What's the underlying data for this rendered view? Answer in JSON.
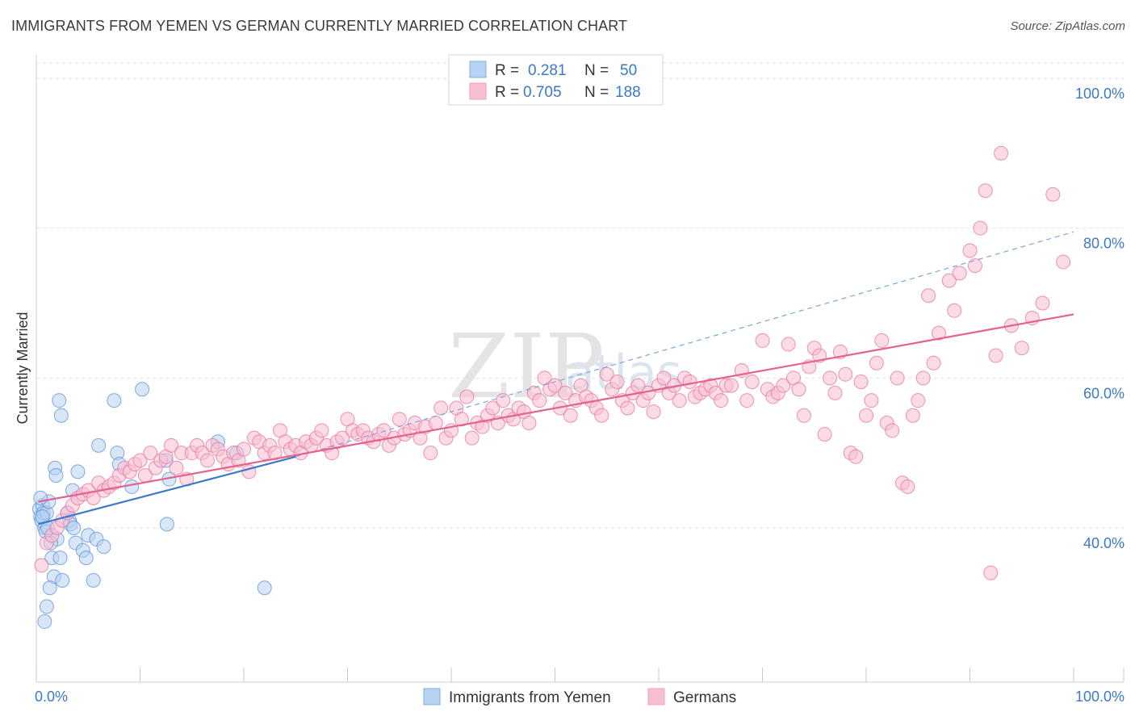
{
  "title": "IMMIGRANTS FROM YEMEN VS GERMAN CURRENTLY MARRIED CORRELATION CHART",
  "source": "Source: ZipAtlas.com",
  "watermark": "ZIP",
  "watermark2": "atlas",
  "legend_top": {
    "r_label": "R =",
    "n_label": "N =",
    "rows": [
      {
        "r": "0.281",
        "n": "50",
        "color": "#7eaee6"
      },
      {
        "r": "0.705",
        "n": "188",
        "color": "#f0a0bc"
      }
    ]
  },
  "chart_data": {
    "type": "scatter",
    "ylabel": "Currently Married",
    "xlabel": "",
    "xlim": [
      0,
      100
    ],
    "ylim": [
      20,
      105
    ],
    "x_tick_labels": [
      "0.0%",
      "100.0%"
    ],
    "y_tick_labels": [
      "40.0%",
      "60.0%",
      "80.0%",
      "100.0%"
    ],
    "y_ticks": [
      40,
      60,
      80,
      100
    ],
    "grid": true,
    "legend_position": "bottom",
    "series": [
      {
        "name": "Immigrants from Yemen",
        "color": "#5b8fd6",
        "fill": "#b8d2f2",
        "trend": {
          "x0": 0.2,
          "y0": 40.5,
          "x1": 25,
          "y1": 49.5,
          "dashed_to_x": 100,
          "dashed_to_y": 79.5
        },
        "points": [
          [
            0.3,
            42.5
          ],
          [
            0.4,
            41.5
          ],
          [
            0.5,
            41
          ],
          [
            0.6,
            43
          ],
          [
            0.7,
            42
          ],
          [
            0.8,
            40
          ],
          [
            0.9,
            39.5
          ],
          [
            1.0,
            42
          ],
          [
            1.1,
            40
          ],
          [
            1.2,
            43.5
          ],
          [
            0.4,
            44
          ],
          [
            0.6,
            41.5
          ],
          [
            1.5,
            36
          ],
          [
            1.7,
            33.5
          ],
          [
            1.3,
            32
          ],
          [
            1.0,
            29.5
          ],
          [
            0.8,
            27.5
          ],
          [
            1.8,
            48
          ],
          [
            1.9,
            47
          ],
          [
            2.2,
            57
          ],
          [
            2.4,
            55
          ],
          [
            2.0,
            38.5
          ],
          [
            2.3,
            36
          ],
          [
            2.5,
            33
          ],
          [
            3.0,
            42
          ],
          [
            3.2,
            41
          ],
          [
            3.5,
            45
          ],
          [
            3.3,
            40.5
          ],
          [
            3.6,
            40
          ],
          [
            4.0,
            47.5
          ],
          [
            3.8,
            38
          ],
          [
            4.5,
            37
          ],
          [
            4.8,
            36
          ],
          [
            5.0,
            39
          ],
          [
            5.5,
            33
          ],
          [
            6.0,
            51
          ],
          [
            5.8,
            38.5
          ],
          [
            6.5,
            37.5
          ],
          [
            7.5,
            57
          ],
          [
            7.8,
            50
          ],
          [
            8.0,
            48.5
          ],
          [
            9.2,
            45.5
          ],
          [
            10.2,
            58.5
          ],
          [
            12.5,
            49
          ],
          [
            12.8,
            46.5
          ],
          [
            12.6,
            40.5
          ],
          [
            17.5,
            51.5
          ],
          [
            19.3,
            50
          ],
          [
            22,
            32
          ],
          [
            1.4,
            38
          ]
        ]
      },
      {
        "name": "Germans",
        "color": "#e8709a",
        "fill": "#f7bfd2",
        "trend": {
          "x0": 0.2,
          "y0": 43.5,
          "x1": 100,
          "y1": 68.5
        },
        "points": [
          [
            0.5,
            35
          ],
          [
            1,
            38
          ],
          [
            1.5,
            39
          ],
          [
            2,
            40
          ],
          [
            2.5,
            41
          ],
          [
            3,
            42
          ],
          [
            3.5,
            43
          ],
          [
            4,
            44
          ],
          [
            4.5,
            44.5
          ],
          [
            5,
            45
          ],
          [
            5.5,
            44
          ],
          [
            6,
            46
          ],
          [
            6.5,
            45
          ],
          [
            7,
            45.5
          ],
          [
            7.5,
            46
          ],
          [
            8,
            47
          ],
          [
            8.5,
            48
          ],
          [
            9,
            47.5
          ],
          [
            9.5,
            48.5
          ],
          [
            10,
            49
          ],
          [
            10.5,
            47
          ],
          [
            11,
            50
          ],
          [
            11.5,
            48
          ],
          [
            12,
            49
          ],
          [
            12.5,
            49.5
          ],
          [
            13,
            51
          ],
          [
            13.5,
            48
          ],
          [
            14,
            50
          ],
          [
            14.5,
            46.5
          ],
          [
            15,
            50
          ],
          [
            15.5,
            51
          ],
          [
            16,
            50
          ],
          [
            16.5,
            49
          ],
          [
            17,
            51
          ],
          [
            17.5,
            50.5
          ],
          [
            18,
            49.5
          ],
          [
            18.5,
            48.5
          ],
          [
            19,
            50
          ],
          [
            19.5,
            49
          ],
          [
            20,
            50.5
          ],
          [
            20.5,
            47.5
          ],
          [
            21,
            52
          ],
          [
            21.5,
            51.5
          ],
          [
            22,
            50
          ],
          [
            22.5,
            51
          ],
          [
            23,
            50
          ],
          [
            23.5,
            53
          ],
          [
            24,
            51.5
          ],
          [
            24.5,
            50.5
          ],
          [
            25,
            51
          ],
          [
            25.5,
            50
          ],
          [
            26,
            51.5
          ],
          [
            26.5,
            51
          ],
          [
            27,
            52
          ],
          [
            27.5,
            53
          ],
          [
            28,
            51
          ],
          [
            28.5,
            50
          ],
          [
            29,
            51.5
          ],
          [
            29.5,
            52
          ],
          [
            30,
            54.5
          ],
          [
            30.5,
            53
          ],
          [
            31,
            52.5
          ],
          [
            31.5,
            53
          ],
          [
            32,
            52
          ],
          [
            32.5,
            51.5
          ],
          [
            33,
            52.5
          ],
          [
            33.5,
            53
          ],
          [
            34,
            51
          ],
          [
            34.5,
            52
          ],
          [
            35,
            54.5
          ],
          [
            35.5,
            52.5
          ],
          [
            36,
            53
          ],
          [
            36.5,
            54
          ],
          [
            37,
            52
          ],
          [
            37.5,
            53.5
          ],
          [
            38,
            50
          ],
          [
            38.5,
            54
          ],
          [
            39,
            56
          ],
          [
            39.5,
            52
          ],
          [
            40,
            53
          ],
          [
            40.5,
            56
          ],
          [
            41,
            54.5
          ],
          [
            41.5,
            57.5
          ],
          [
            42,
            52
          ],
          [
            42.5,
            54
          ],
          [
            43,
            53.5
          ],
          [
            43.5,
            55
          ],
          [
            44,
            56
          ],
          [
            44.5,
            54
          ],
          [
            45,
            57
          ],
          [
            45.5,
            55
          ],
          [
            46,
            54.5
          ],
          [
            46.5,
            56
          ],
          [
            47,
            55.5
          ],
          [
            47.5,
            54
          ],
          [
            48,
            58
          ],
          [
            48.5,
            57
          ],
          [
            49,
            60
          ],
          [
            49.5,
            58.5
          ],
          [
            50,
            59
          ],
          [
            50.5,
            56
          ],
          [
            51,
            58
          ],
          [
            51.5,
            55
          ],
          [
            52,
            57
          ],
          [
            52.5,
            59
          ],
          [
            53,
            57.5
          ],
          [
            53.5,
            57
          ],
          [
            54,
            56
          ],
          [
            54.5,
            55
          ],
          [
            55,
            60.5
          ],
          [
            55.5,
            58.5
          ],
          [
            56,
            59.5
          ],
          [
            56.5,
            57
          ],
          [
            57,
            56
          ],
          [
            57.5,
            58
          ],
          [
            58,
            59
          ],
          [
            58.5,
            57
          ],
          [
            59,
            58
          ],
          [
            59.5,
            55.5
          ],
          [
            60,
            59
          ],
          [
            60.5,
            60
          ],
          [
            61,
            58
          ],
          [
            61.5,
            59
          ],
          [
            62,
            57
          ],
          [
            62.5,
            60
          ],
          [
            63,
            59.5
          ],
          [
            63.5,
            57.5
          ],
          [
            64,
            58
          ],
          [
            64.5,
            58.5
          ],
          [
            65,
            59
          ],
          [
            65.5,
            58
          ],
          [
            66,
            57
          ],
          [
            66.5,
            59
          ],
          [
            67,
            59
          ],
          [
            68,
            61
          ],
          [
            68.5,
            57
          ],
          [
            69,
            59.5
          ],
          [
            70,
            65
          ],
          [
            70.5,
            58.5
          ],
          [
            71,
            57.5
          ],
          [
            71.5,
            58
          ],
          [
            72,
            59
          ],
          [
            72.5,
            64.5
          ],
          [
            73,
            60
          ],
          [
            73.5,
            58.5
          ],
          [
            74,
            55
          ],
          [
            74.5,
            61.5
          ],
          [
            75,
            64
          ],
          [
            75.5,
            63
          ],
          [
            76,
            52.5
          ],
          [
            76.5,
            60
          ],
          [
            77,
            58
          ],
          [
            77.5,
            63.5
          ],
          [
            78,
            60.5
          ],
          [
            78.5,
            50
          ],
          [
            79,
            49.5
          ],
          [
            79.5,
            59.5
          ],
          [
            80,
            55
          ],
          [
            80.5,
            57
          ],
          [
            81,
            62
          ],
          [
            81.5,
            65
          ],
          [
            82,
            54
          ],
          [
            82.5,
            53
          ],
          [
            83,
            60
          ],
          [
            83.5,
            46
          ],
          [
            84,
            45.5
          ],
          [
            84.5,
            55
          ],
          [
            85,
            57
          ],
          [
            85.5,
            60
          ],
          [
            86,
            71
          ],
          [
            86.5,
            62
          ],
          [
            87,
            66
          ],
          [
            88,
            73
          ],
          [
            88.5,
            69
          ],
          [
            89,
            74
          ],
          [
            90,
            77
          ],
          [
            90.5,
            75
          ],
          [
            91,
            80
          ],
          [
            91.5,
            85
          ],
          [
            92,
            34
          ],
          [
            92.5,
            63
          ],
          [
            93,
            90
          ],
          [
            94,
            67
          ],
          [
            95,
            64
          ],
          [
            96,
            68
          ],
          [
            97,
            70
          ],
          [
            98,
            84.5
          ],
          [
            99,
            75.5
          ]
        ]
      }
    ]
  }
}
